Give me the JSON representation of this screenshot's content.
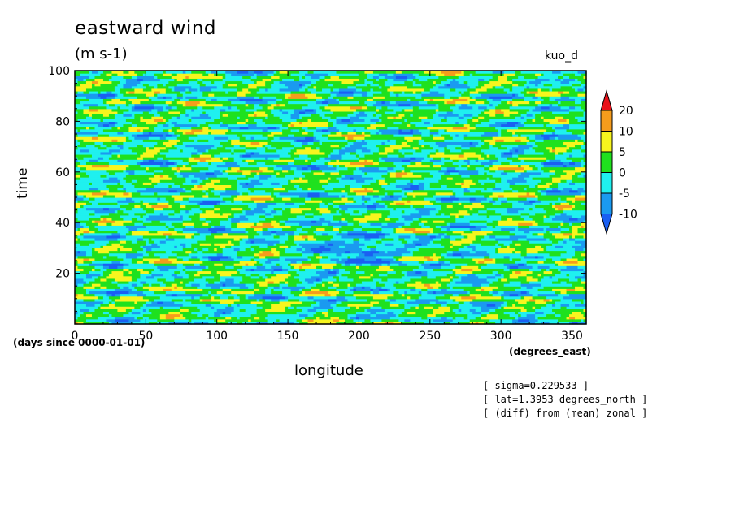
{
  "chart_data": {
    "type": "heatmap",
    "title": "eastward wind",
    "units": "(m s-1)",
    "experiment": "kuo_d",
    "xlabel": "longitude",
    "xunits": "(degrees_east)",
    "ylabel": "time",
    "yunits": "(days since 0000-01-01)",
    "xlim": [
      0,
      360
    ],
    "ylim": [
      0,
      100
    ],
    "xticks": [
      0,
      50,
      100,
      150,
      200,
      250,
      300,
      350
    ],
    "yticks": [
      20,
      40,
      60,
      80,
      100
    ],
    "colorbar": {
      "levels": [
        20,
        10,
        5,
        0,
        -5,
        -10
      ],
      "colors": [
        "#e8121a",
        "#f59c1c",
        "#f7f51e",
        "#1fe11e",
        "#1ff0ef",
        "#1a9af0",
        "#1a5ff2"
      ],
      "extend": "both"
    },
    "annotations": [
      "[ sigma=0.229533 ]",
      "[ lat=1.3953 degrees_north ]",
      "[ (diff) from (mean) zonal ]"
    ]
  }
}
